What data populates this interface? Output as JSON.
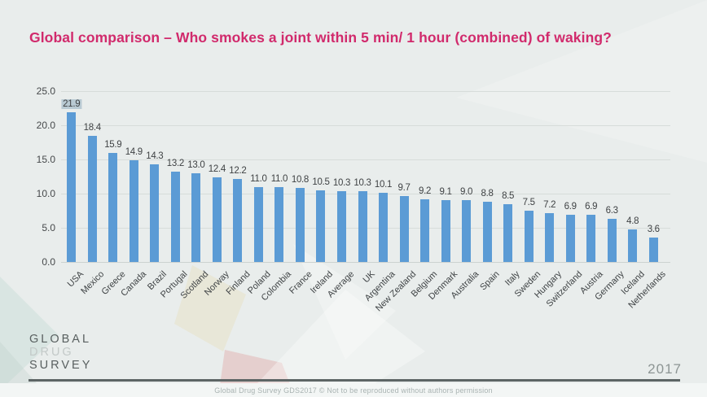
{
  "page": {
    "title": "Global comparison – Who smokes a joint within 5 min/ 1 hour (combined) of waking?",
    "year": "2017",
    "footer": "Global Drug Survey GDS2017 © Not to be reproduced without authors permission",
    "logo": {
      "line1": "GLOBAL",
      "line2": "DRUG",
      "line3": "SURVEY"
    }
  },
  "colors": {
    "background": "#e9edec",
    "title": "#d12a6c",
    "bar": "#5b9bd5",
    "value_label": "#3f4244",
    "axis_label": "#46494b",
    "gridline": "#d7dcda",
    "value_highlight": "#a8bdcb"
  },
  "chart_data": {
    "type": "bar",
    "title": "Global comparison – Who smokes a joint within 5 min/ 1 hour (combined) of waking?",
    "categories": [
      "USA",
      "Mexico",
      "Greece",
      "Canada",
      "Brazil",
      "Portugal",
      "Scotland",
      "Norway",
      "Finland",
      "Poland",
      "Colombia",
      "France",
      "Ireland",
      "Average",
      "UK",
      "Argentina",
      "New Zealand",
      "Belgium",
      "Denmark",
      "Australia",
      "Spain",
      "Italy",
      "Sweden",
      "Hungary",
      "Switzerland",
      "Austria",
      "Germany",
      "Iceland",
      "Netherlands"
    ],
    "values": [
      21.9,
      18.4,
      15.9,
      14.9,
      14.3,
      13.2,
      13.0,
      12.4,
      12.2,
      11.0,
      11.0,
      10.8,
      10.5,
      10.3,
      10.3,
      10.1,
      9.7,
      9.2,
      9.1,
      9.0,
      8.8,
      8.5,
      7.5,
      7.2,
      6.9,
      6.9,
      6.3,
      4.8,
      3.6
    ],
    "xlabel": "",
    "ylabel": "",
    "ylim": [
      0,
      25
    ],
    "ytick_step": 5,
    "ytick_labels": [
      "0.0",
      "5.0",
      "10.0",
      "15.0",
      "20.0",
      "25.0"
    ],
    "grid": true,
    "legend": false,
    "data_labels": true,
    "highlighted_value_index": 0,
    "x_label_rotation": -45
  }
}
